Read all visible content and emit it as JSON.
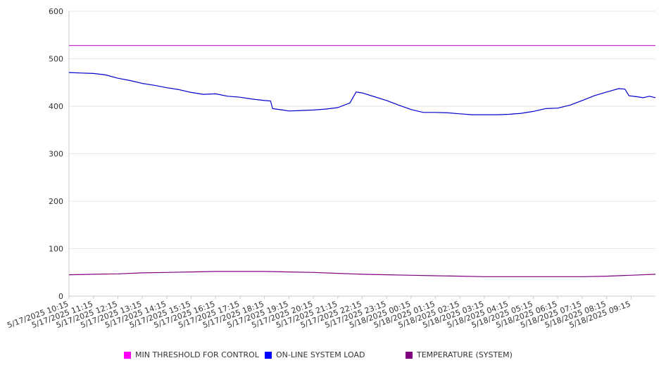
{
  "chart_data": {
    "type": "line",
    "title": "",
    "xlabel": "",
    "ylabel": "",
    "ylim": [
      0,
      600
    ],
    "y_ticks": [
      0,
      100,
      200,
      300,
      400,
      500,
      600
    ],
    "x_tick_labels": [
      "5/17/2025 10:15",
      "5/17/2025 11:15",
      "5/17/2025 12:15",
      "5/17/2025 13:15",
      "5/17/2025 14:15",
      "5/17/2025 15:15",
      "5/17/2025 16:15",
      "5/17/2025 17:15",
      "5/17/2025 18:15",
      "5/17/2025 19:15",
      "5/17/2025 20:15",
      "5/17/2025 21:15",
      "5/17/2025 22:15",
      "5/17/2025 23:15",
      "5/18/2025 00:15",
      "5/18/2025 01:15",
      "5/18/2025 02:15",
      "5/18/2025 03:15",
      "5/18/2025 04:15",
      "5/18/2025 05:15",
      "5/18/2025 06:15",
      "5/18/2025 07:15",
      "5/18/2025 08:15",
      "5/18/2025 09:15"
    ],
    "x_start": "5/17/2025 10:15",
    "x_end": "5/18/2025 10:15",
    "grid": true,
    "legend_position": "bottom",
    "series": [
      {
        "name": "MIN THRESHOLD FOR CONTROL",
        "color": "#cc33cc",
        "points": [
          [
            "5/17/2025 10:15",
            528
          ],
          [
            "5/18/2025 10:15",
            528
          ]
        ]
      },
      {
        "name": "ON-LINE SYSTEM LOAD",
        "color": "#0000cc",
        "points": [
          [
            "5/17/2025 10:15",
            471
          ],
          [
            "5/17/2025 10:45",
            470
          ],
          [
            "5/17/2025 11:15",
            469
          ],
          [
            "5/17/2025 11:45",
            466
          ],
          [
            "5/17/2025 12:15",
            459
          ],
          [
            "5/17/2025 12:45",
            454
          ],
          [
            "5/17/2025 13:15",
            448
          ],
          [
            "5/17/2025 13:45",
            444
          ],
          [
            "5/17/2025 14:15",
            439
          ],
          [
            "5/17/2025 14:45",
            435
          ],
          [
            "5/17/2025 15:15",
            429
          ],
          [
            "5/17/2025 15:45",
            425
          ],
          [
            "5/17/2025 16:15",
            426
          ],
          [
            "5/17/2025 16:45",
            421
          ],
          [
            "5/17/2025 17:15",
            419
          ],
          [
            "5/17/2025 17:45",
            415
          ],
          [
            "5/17/2025 18:15",
            412
          ],
          [
            "5/17/2025 18:30",
            411
          ],
          [
            "5/17/2025 18:35",
            395
          ],
          [
            "5/17/2025 19:00",
            392
          ],
          [
            "5/17/2025 19:15",
            390
          ],
          [
            "5/17/2025 19:45",
            391
          ],
          [
            "5/17/2025 20:15",
            392
          ],
          [
            "5/17/2025 20:45",
            394
          ],
          [
            "5/17/2025 21:15",
            397
          ],
          [
            "5/17/2025 21:45",
            407
          ],
          [
            "5/17/2025 22:00",
            430
          ],
          [
            "5/17/2025 22:15",
            428
          ],
          [
            "5/17/2025 22:45",
            420
          ],
          [
            "5/17/2025 23:15",
            412
          ],
          [
            "5/17/2025 23:45",
            402
          ],
          [
            "5/18/2025 00:15",
            393
          ],
          [
            "5/18/2025 00:45",
            387
          ],
          [
            "5/18/2025 01:15",
            387
          ],
          [
            "5/18/2025 01:45",
            386
          ],
          [
            "5/18/2025 02:15",
            384
          ],
          [
            "5/18/2025 02:45",
            382
          ],
          [
            "5/18/2025 03:15",
            382
          ],
          [
            "5/18/2025 03:45",
            382
          ],
          [
            "5/18/2025 04:15",
            383
          ],
          [
            "5/18/2025 04:45",
            385
          ],
          [
            "5/18/2025 05:15",
            389
          ],
          [
            "5/18/2025 05:45",
            395
          ],
          [
            "5/18/2025 06:15",
            396
          ],
          [
            "5/18/2025 06:45",
            402
          ],
          [
            "5/18/2025 07:15",
            412
          ],
          [
            "5/18/2025 07:45",
            422
          ],
          [
            "5/18/2025 08:15",
            430
          ],
          [
            "5/18/2025 08:45",
            437
          ],
          [
            "5/18/2025 09:00",
            436
          ],
          [
            "5/18/2025 09:10",
            422
          ],
          [
            "5/18/2025 09:30",
            420
          ],
          [
            "5/18/2025 09:45",
            418
          ],
          [
            "5/18/2025 10:00",
            421
          ],
          [
            "5/18/2025 10:15",
            418
          ]
        ]
      },
      {
        "name": "TEMPERATURE (SYSTEM)",
        "color": "#800080",
        "points": [
          [
            "5/17/2025 10:15",
            45
          ],
          [
            "5/17/2025 11:15",
            46
          ],
          [
            "5/17/2025 12:15",
            47
          ],
          [
            "5/17/2025 13:15",
            49
          ],
          [
            "5/17/2025 14:15",
            50
          ],
          [
            "5/17/2025 15:15",
            51
          ],
          [
            "5/17/2025 16:15",
            52
          ],
          [
            "5/17/2025 17:15",
            52
          ],
          [
            "5/17/2025 18:15",
            52
          ],
          [
            "5/17/2025 19:15",
            51
          ],
          [
            "5/17/2025 20:15",
            50
          ],
          [
            "5/17/2025 21:15",
            48
          ],
          [
            "5/17/2025 22:15",
            46
          ],
          [
            "5/17/2025 23:15",
            45
          ],
          [
            "5/18/2025 00:15",
            44
          ],
          [
            "5/18/2025 01:15",
            43
          ],
          [
            "5/18/2025 02:15",
            42
          ],
          [
            "5/18/2025 03:15",
            41
          ],
          [
            "5/18/2025 04:15",
            41
          ],
          [
            "5/18/2025 05:15",
            41
          ],
          [
            "5/18/2025 06:15",
            41
          ],
          [
            "5/18/2025 07:15",
            41
          ],
          [
            "5/18/2025 08:15",
            42
          ],
          [
            "5/18/2025 09:15",
            44
          ],
          [
            "5/18/2025 10:15",
            46
          ]
        ]
      }
    ],
    "legend": [
      {
        "label": "MIN THRESHOLD FOR CONTROL",
        "color": "#ff00ff"
      },
      {
        "label": "ON-LINE SYSTEM LOAD",
        "color": "#0000ff"
      },
      {
        "label": "TEMPERATURE (SYSTEM)",
        "color": "#800080"
      }
    ]
  }
}
